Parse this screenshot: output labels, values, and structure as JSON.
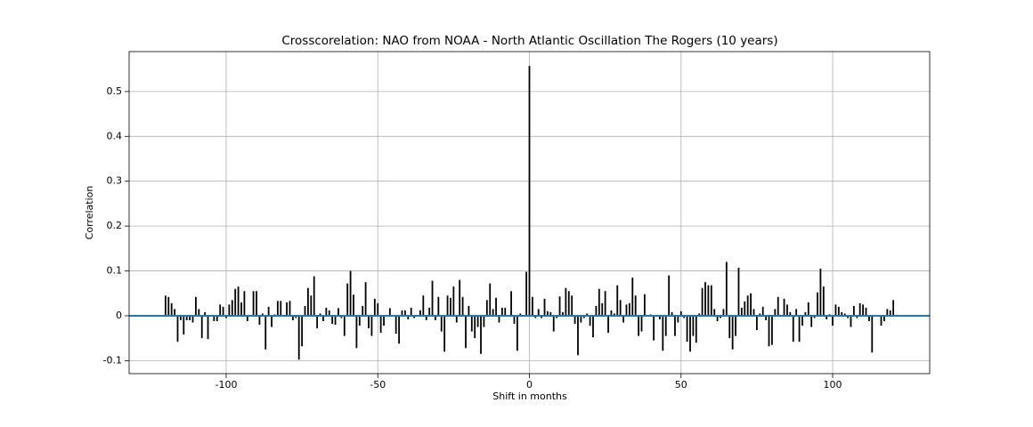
{
  "chart_data": {
    "type": "xcorr",
    "title": "Crosscorelation: NAO from NOAA - North Atlantic Oscillation The Rogers (10 years)",
    "x_label": "Shift in months",
    "y_label": "Correlation",
    "x": [
      -120,
      -119,
      -118,
      -117,
      -116,
      -115,
      -114,
      -113,
      -112,
      -111,
      -110,
      -109,
      -108,
      -107,
      -106,
      -105,
      -104,
      -103,
      -102,
      -101,
      -100,
      -99,
      -98,
      -97,
      -96,
      -95,
      -94,
      -93,
      -92,
      -91,
      -90,
      -89,
      -88,
      -87,
      -86,
      -85,
      -84,
      -83,
      -82,
      -81,
      -80,
      -79,
      -78,
      -77,
      -76,
      -75,
      -74,
      -73,
      -72,
      -71,
      -70,
      -69,
      -68,
      -67,
      -66,
      -65,
      -64,
      -63,
      -62,
      -61,
      -60,
      -59,
      -58,
      -57,
      -56,
      -55,
      -54,
      -53,
      -52,
      -51,
      -50,
      -49,
      -48,
      -47,
      -46,
      -45,
      -44,
      -43,
      -42,
      -41,
      -40,
      -39,
      -38,
      -37,
      -36,
      -35,
      -34,
      -33,
      -32,
      -31,
      -30,
      -29,
      -28,
      -27,
      -26,
      -25,
      -24,
      -23,
      -22,
      -21,
      -20,
      -19,
      -18,
      -17,
      -16,
      -15,
      -14,
      -13,
      -12,
      -11,
      -10,
      -9,
      -8,
      -7,
      -6,
      -5,
      -4,
      -3,
      -2,
      -1,
      0,
      1,
      2,
      3,
      4,
      5,
      6,
      7,
      8,
      9,
      10,
      11,
      12,
      13,
      14,
      15,
      16,
      17,
      18,
      19,
      20,
      21,
      22,
      23,
      24,
      25,
      26,
      27,
      28,
      29,
      30,
      31,
      32,
      33,
      34,
      35,
      36,
      37,
      38,
      39,
      40,
      41,
      42,
      43,
      44,
      45,
      46,
      47,
      48,
      49,
      50,
      51,
      52,
      53,
      54,
      55,
      56,
      57,
      58,
      59,
      60,
      61,
      62,
      63,
      64,
      65,
      66,
      67,
      68,
      69,
      70,
      71,
      72,
      73,
      74,
      75,
      76,
      77,
      78,
      79,
      80,
      81,
      82,
      83,
      84,
      85,
      86,
      87,
      88,
      89,
      90,
      91,
      92,
      93,
      94,
      95,
      96,
      97,
      98,
      99,
      100,
      101,
      102,
      103,
      104,
      105,
      106,
      107,
      108,
      109,
      110,
      111,
      112,
      113,
      114,
      115,
      116,
      117,
      118,
      119,
      120
    ],
    "values": [
      0.045,
      0.042,
      0.028,
      0.015,
      -0.058,
      -0.01,
      -0.042,
      -0.01,
      -0.01,
      -0.015,
      0.042,
      0.015,
      -0.05,
      0.008,
      -0.052,
      0.0,
      -0.012,
      -0.012,
      0.025,
      0.02,
      -0.005,
      0.025,
      0.035,
      0.06,
      0.065,
      0.03,
      0.055,
      -0.012,
      0.0,
      0.055,
      0.055,
      -0.02,
      0.005,
      -0.075,
      0.02,
      -0.025,
      0.003,
      0.033,
      0.033,
      0.0,
      0.03,
      0.033,
      -0.01,
      -0.005,
      -0.098,
      -0.068,
      0.022,
      0.062,
      0.045,
      0.088,
      -0.028,
      0.005,
      -0.012,
      0.018,
      0.012,
      -0.018,
      -0.02,
      0.017,
      -0.005,
      -0.045,
      0.072,
      0.1,
      0.047,
      -0.072,
      -0.022,
      0.022,
      0.075,
      -0.028,
      -0.045,
      0.038,
      0.028,
      -0.038,
      -0.022,
      0.0,
      0.017,
      0.0,
      -0.04,
      -0.062,
      0.012,
      0.012,
      -0.008,
      0.018,
      -0.005,
      0.0,
      0.012,
      0.045,
      -0.01,
      0.018,
      0.078,
      -0.01,
      0.042,
      -0.035,
      -0.08,
      0.045,
      0.04,
      0.065,
      -0.015,
      0.08,
      0.042,
      -0.072,
      0.022,
      -0.035,
      -0.05,
      -0.025,
      -0.085,
      -0.025,
      0.035,
      0.072,
      0.015,
      0.04,
      -0.015,
      0.018,
      0.018,
      0.0,
      0.055,
      -0.018,
      -0.078,
      0.005,
      0.0,
      0.098,
      0.557,
      0.042,
      -0.005,
      0.015,
      -0.005,
      0.038,
      0.01,
      0.008,
      -0.035,
      -0.005,
      0.043,
      0.008,
      0.062,
      0.055,
      0.045,
      -0.018,
      -0.088,
      -0.015,
      -0.005,
      0.005,
      -0.022,
      -0.048,
      0.022,
      0.06,
      0.028,
      0.055,
      -0.038,
      0.012,
      0.005,
      0.068,
      0.035,
      -0.015,
      0.025,
      0.028,
      0.085,
      0.045,
      -0.045,
      -0.035,
      0.048,
      0.0,
      0.003,
      -0.055,
      0.0,
      -0.008,
      -0.078,
      -0.045,
      0.09,
      0.008,
      -0.045,
      -0.015,
      0.01,
      -0.005,
      -0.058,
      -0.08,
      -0.045,
      -0.06,
      0.005,
      0.062,
      0.075,
      0.068,
      0.068,
      0.015,
      -0.012,
      -0.005,
      0.015,
      0.12,
      -0.05,
      -0.075,
      -0.045,
      0.107,
      0.018,
      0.032,
      0.045,
      0.05,
      0.015,
      -0.032,
      0.005,
      0.02,
      -0.01,
      -0.068,
      -0.065,
      0.015,
      0.042,
      0.0,
      0.038,
      0.025,
      0.008,
      -0.058,
      0.015,
      -0.058,
      -0.022,
      0.008,
      0.03,
      -0.025,
      -0.005,
      0.052,
      0.105,
      0.065,
      -0.008,
      0.003,
      -0.022,
      0.025,
      0.02,
      0.008,
      0.005,
      -0.005,
      -0.025,
      0.022,
      -0.005,
      0.028,
      0.025,
      0.018,
      -0.012,
      -0.082,
      0.0,
      0.0,
      -0.022,
      -0.012,
      0.015,
      0.012,
      0.035
    ],
    "color": "#000000",
    "zero_line_color": "#1f77b4",
    "xlim": [
      -132,
      132
    ],
    "xticks": [
      -100,
      -50,
      0,
      50,
      100
    ],
    "ylim": [
      -0.129,
      0.589
    ],
    "yticks": [
      -0.1,
      0.0,
      0.1,
      0.2,
      0.3,
      0.4,
      0.5
    ],
    "grid": true
  }
}
